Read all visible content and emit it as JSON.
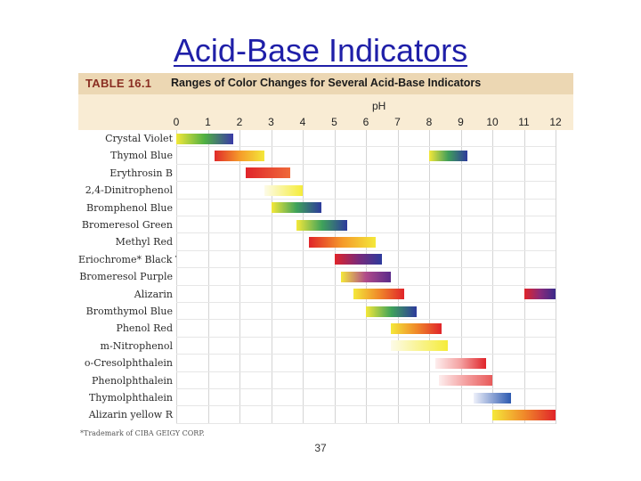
{
  "slide": {
    "title": "Acid-Base Indicators",
    "page_number": "37"
  },
  "table": {
    "number": "TABLE 16.1",
    "caption": "Ranges of Color Changes for Several Acid-Base Indicators",
    "axis_label": "pH",
    "footnote": "*Trademark of CIBA GEIGY CORP.",
    "ph_ticks": [
      "0",
      "1",
      "2",
      "3",
      "4",
      "5",
      "6",
      "7",
      "8",
      "9",
      "10",
      "11",
      "12"
    ],
    "indicators": [
      {
        "name": "Crystal Violet",
        "bars": [
          {
            "from": 0,
            "to": 1.8,
            "colors": [
              "#f2e83a",
              "#4fb043",
              "#3a3aa8"
            ]
          }
        ]
      },
      {
        "name": "Thymol Blue",
        "bars": [
          {
            "from": 1.2,
            "to": 2.8,
            "colors": [
              "#e02a2a",
              "#f59a2a",
              "#f4e83a"
            ]
          },
          {
            "from": 8.0,
            "to": 9.2,
            "colors": [
              "#f4e83a",
              "#3f9e5a",
              "#2d3a9c"
            ]
          }
        ]
      },
      {
        "name": "Erythrosin B",
        "bars": [
          {
            "from": 2.2,
            "to": 3.6,
            "colors": [
              "#e0242a",
              "#ef6a3a"
            ]
          }
        ]
      },
      {
        "name": "2,4-Dinitrophenol",
        "bars": [
          {
            "from": 2.8,
            "to": 4.0,
            "colors": [
              "#fdfbe8",
              "#f5ec3a"
            ]
          }
        ]
      },
      {
        "name": "Bromphenol Blue",
        "bars": [
          {
            "from": 3.0,
            "to": 4.6,
            "colors": [
              "#f4e83a",
              "#3fa35a",
              "#2d3a9c"
            ]
          }
        ]
      },
      {
        "name": "Bromeresol Green",
        "bars": [
          {
            "from": 3.8,
            "to": 5.4,
            "colors": [
              "#f4e83a",
              "#3fa35a",
              "#2d3a9c"
            ]
          }
        ]
      },
      {
        "name": "Methyl Red",
        "bars": [
          {
            "from": 4.2,
            "to": 6.3,
            "colors": [
              "#e0242a",
              "#f59a2a",
              "#f4e83a"
            ]
          }
        ]
      },
      {
        "name": "Eriochrome* Black T",
        "bars": [
          {
            "from": 5.0,
            "to": 6.5,
            "colors": [
              "#e0242a",
              "#7a2a7a",
              "#2d3a9c"
            ]
          }
        ]
      },
      {
        "name": "Bromeresol Purple",
        "bars": [
          {
            "from": 5.2,
            "to": 6.8,
            "colors": [
              "#f4e83a",
              "#b04a8a",
              "#5a2a8a"
            ]
          }
        ]
      },
      {
        "name": "Alizarin",
        "bars": [
          {
            "from": 5.6,
            "to": 7.2,
            "colors": [
              "#f4e83a",
              "#f08a2a",
              "#e0242a"
            ]
          },
          {
            "from": 11.0,
            "to": 12.0,
            "colors": [
              "#e0242a",
              "#8a2a7a",
              "#3a2a8a"
            ]
          }
        ]
      },
      {
        "name": "Bromthymol Blue",
        "bars": [
          {
            "from": 6.0,
            "to": 7.6,
            "colors": [
              "#f4e83a",
              "#3fa35a",
              "#2d3a9c"
            ]
          }
        ]
      },
      {
        "name": "Phenol Red",
        "bars": [
          {
            "from": 6.8,
            "to": 8.4,
            "colors": [
              "#f4e83a",
              "#f08a2a",
              "#e0242a"
            ]
          }
        ]
      },
      {
        "name": "m-Nitrophenol",
        "bars": [
          {
            "from": 6.8,
            "to": 8.6,
            "colors": [
              "#fdfbe8",
              "#f5ec3a"
            ]
          }
        ]
      },
      {
        "name": "o-Cresolphthalein",
        "bars": [
          {
            "from": 8.2,
            "to": 9.8,
            "colors": [
              "#fdeeee",
              "#f4a0a0",
              "#e0242a"
            ]
          }
        ]
      },
      {
        "name": "Phenolphthalein",
        "bars": [
          {
            "from": 8.3,
            "to": 10.0,
            "colors": [
              "#fdeeee",
              "#f4a0a0",
              "#e85a5a"
            ]
          }
        ]
      },
      {
        "name": "Thymolphthalein",
        "bars": [
          {
            "from": 9.4,
            "to": 10.6,
            "colors": [
              "#eef0fa",
              "#2d5ab0"
            ]
          }
        ]
      },
      {
        "name": "Alizarin yellow R",
        "bars": [
          {
            "from": 10.0,
            "to": 12.0,
            "colors": [
              "#f4e83a",
              "#f08a2a",
              "#e0242a"
            ]
          }
        ]
      }
    ]
  }
}
